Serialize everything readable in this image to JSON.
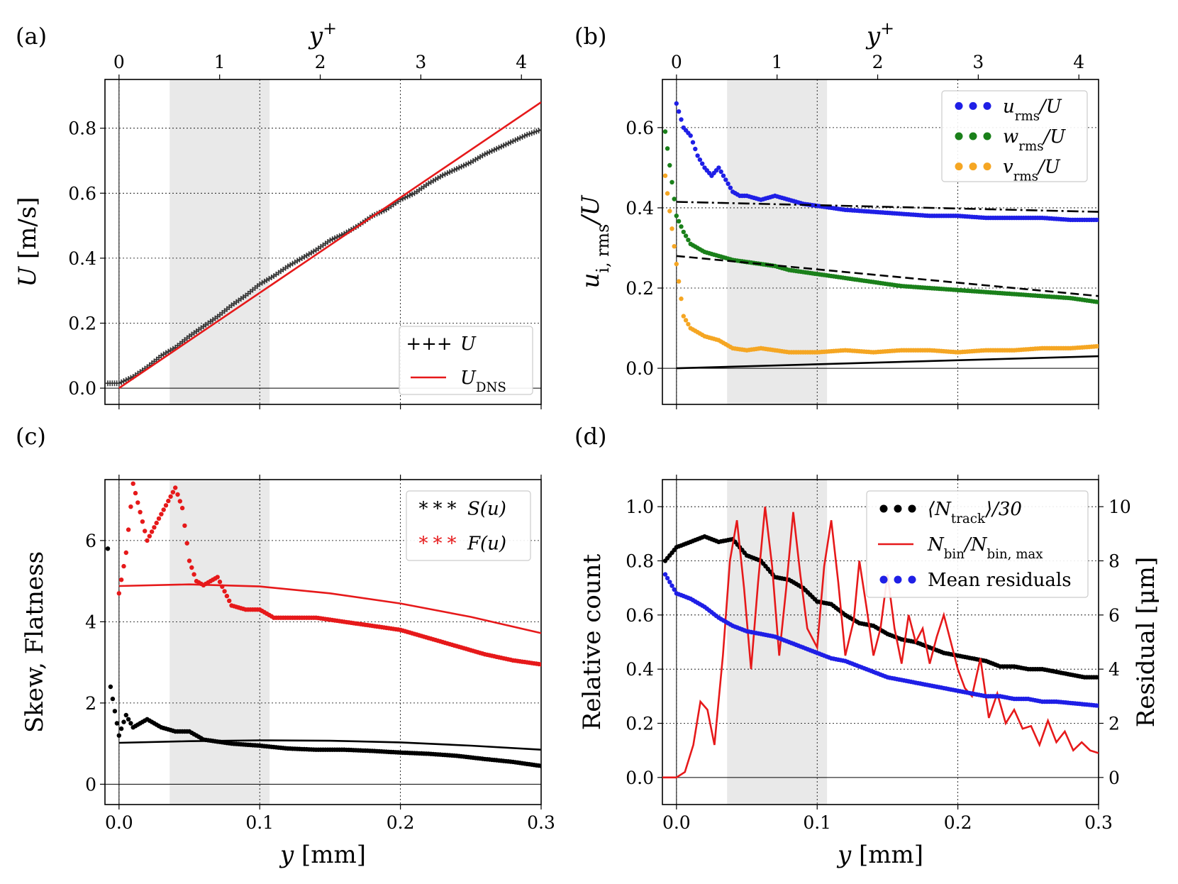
{
  "figure": {
    "panels": [
      {
        "id": "a",
        "label": "(a)",
        "xlabel": "",
        "top_label_main": "y",
        "top_label_sup": "+",
        "ylabel_main": "U",
        "ylabel_rest": " [m/s]",
        "xlim": [
          -0.01,
          0.3
        ],
        "ylim": [
          -0.05,
          0.95
        ],
        "x_ticks": [],
        "y_ticks": [
          "0.0",
          "0.2",
          "0.4",
          "0.6",
          "0.8"
        ],
        "top_ticks": [
          "0",
          "1",
          "2",
          "3",
          "4"
        ],
        "legend": [
          {
            "marker": "+++",
            "main": "U",
            "sub": ""
          },
          {
            "marker": "line",
            "main": "U",
            "sub": "DNS"
          }
        ]
      },
      {
        "id": "b",
        "label": "(b)",
        "xlabel": "",
        "top_label_main": "y",
        "top_label_sup": "+",
        "ylabel_main": "u",
        "ylabel_sub": "i, rms",
        "ylabel_rest": "/U",
        "xlim": [
          -0.01,
          0.3
        ],
        "ylim": [
          -0.09,
          0.72
        ],
        "x_ticks": [],
        "y_ticks": [
          "0.0",
          "0.2",
          "0.4",
          "0.6"
        ],
        "top_ticks": [
          "0",
          "1",
          "2",
          "3",
          "4"
        ],
        "legend": [
          {
            "marker": "dots",
            "color": "#1f1fe6",
            "main": "u",
            "sub": "rms",
            "rest": "/U"
          },
          {
            "marker": "dots",
            "color": "#1a801a",
            "main": "w",
            "sub": "rms",
            "rest": "/U"
          },
          {
            "marker": "dots",
            "color": "#f5a623",
            "main": "v",
            "sub": "rms",
            "rest": "/U"
          }
        ]
      },
      {
        "id": "c",
        "label": "(c)",
        "xlabel_main": "y",
        "xlabel_rest": " [mm]",
        "ylabel_main": "Skew, Flatness",
        "xlim": [
          -0.01,
          0.3
        ],
        "ylim": [
          -0.5,
          7.5
        ],
        "x_ticks": [
          "0.0",
          "0.1",
          "0.2",
          "0.3"
        ],
        "y_ticks": [
          "0",
          "2",
          "4",
          "6"
        ],
        "legend": [
          {
            "marker": "stars",
            "color": "#000000",
            "main": "S(u)"
          },
          {
            "marker": "stars",
            "color": "#e6191a",
            "main": "F(u)"
          }
        ]
      },
      {
        "id": "d",
        "label": "(d)",
        "xlabel_main": "y",
        "xlabel_rest": " [mm]",
        "ylabel_main": "Relative count",
        "ylabel_right": "Residual [μm]",
        "xlim": [
          -0.01,
          0.3
        ],
        "ylim": [
          -0.1,
          1.1
        ],
        "y2lim": [
          -1,
          11
        ],
        "x_ticks": [
          "0.0",
          "0.1",
          "0.2",
          "0.3"
        ],
        "y_ticks": [
          "0.0",
          "0.2",
          "0.4",
          "0.6",
          "0.8",
          "1.0"
        ],
        "y2_ticks": [
          "0",
          "2",
          "4",
          "6",
          "8",
          "10"
        ],
        "legend": [
          {
            "marker": "dots",
            "color": "#000000",
            "main": "⟨N",
            "sub": "track",
            "rest": "⟩/30"
          },
          {
            "marker": "line",
            "color": "#e6191a",
            "main": "N",
            "sub": "bin",
            "rest": "/N",
            "sub2": "bin, max"
          },
          {
            "marker": "dots",
            "color": "#1f1fe6",
            "main": "Mean residuals"
          }
        ]
      }
    ]
  },
  "chart_data": [
    {
      "panel": "a",
      "type": "line",
      "xlabel": "",
      "ylabel": "U [m/s]",
      "top_xlabel": "y+",
      "xlim": [
        -0.01,
        0.3
      ],
      "ylim": [
        -0.05,
        0.95
      ],
      "grid": true,
      "legend_position": "lower-right",
      "shaded_band": [
        0.036,
        0.107
      ],
      "series": [
        {
          "name": "U",
          "style": "markers-plus",
          "color": "#333333",
          "x": [
            -0.008,
            0.0,
            0.01,
            0.02,
            0.03,
            0.04,
            0.05,
            0.06,
            0.07,
            0.08,
            0.09,
            0.1,
            0.11,
            0.12,
            0.13,
            0.14,
            0.15,
            0.16,
            0.17,
            0.18,
            0.19,
            0.2,
            0.21,
            0.22,
            0.23,
            0.24,
            0.25,
            0.26,
            0.27,
            0.28,
            0.29,
            0.3
          ],
          "y": [
            0.015,
            0.015,
            0.035,
            0.065,
            0.1,
            0.125,
            0.16,
            0.19,
            0.22,
            0.255,
            0.285,
            0.32,
            0.345,
            0.375,
            0.4,
            0.425,
            0.455,
            0.475,
            0.5,
            0.53,
            0.55,
            0.58,
            0.6,
            0.63,
            0.655,
            0.675,
            0.695,
            0.72,
            0.74,
            0.76,
            0.78,
            0.795
          ]
        },
        {
          "name": "U_DNS",
          "style": "line",
          "color": "#e6191a",
          "x": [
            0.0,
            0.3
          ],
          "y": [
            0.0,
            0.88
          ]
        }
      ]
    },
    {
      "panel": "b",
      "type": "scatter",
      "xlabel": "",
      "ylabel": "u_i,rms/U",
      "top_xlabel": "y+",
      "xlim": [
        -0.01,
        0.3
      ],
      "ylim": [
        -0.09,
        0.72
      ],
      "grid": true,
      "legend_position": "upper-right",
      "shaded_band": [
        0.036,
        0.107
      ],
      "series": [
        {
          "name": "u_rms/U",
          "color": "#1f1fe6",
          "x": [
            0.0,
            0.005,
            0.01,
            0.015,
            0.02,
            0.025,
            0.03,
            0.035,
            0.04,
            0.045,
            0.05,
            0.06,
            0.07,
            0.08,
            0.09,
            0.1,
            0.12,
            0.14,
            0.16,
            0.18,
            0.2,
            0.22,
            0.24,
            0.26,
            0.28,
            0.3
          ],
          "y": [
            0.66,
            0.6,
            0.58,
            0.53,
            0.5,
            0.48,
            0.5,
            0.47,
            0.44,
            0.43,
            0.43,
            0.42,
            0.43,
            0.42,
            0.41,
            0.405,
            0.395,
            0.39,
            0.385,
            0.38,
            0.38,
            0.375,
            0.375,
            0.375,
            0.37,
            0.37
          ]
        },
        {
          "name": "w_rms/U",
          "color": "#1a801a",
          "x": [
            -0.008,
            0.0,
            0.005,
            0.01,
            0.02,
            0.03,
            0.04,
            0.05,
            0.06,
            0.07,
            0.08,
            0.1,
            0.12,
            0.14,
            0.16,
            0.18,
            0.2,
            0.22,
            0.24,
            0.26,
            0.28,
            0.3
          ],
          "y": [
            0.59,
            0.38,
            0.34,
            0.31,
            0.29,
            0.28,
            0.27,
            0.265,
            0.26,
            0.255,
            0.245,
            0.235,
            0.225,
            0.215,
            0.205,
            0.2,
            0.195,
            0.19,
            0.185,
            0.18,
            0.175,
            0.165
          ]
        },
        {
          "name": "v_rms/U",
          "color": "#f5a623",
          "x": [
            -0.008,
            0.0,
            0.005,
            0.01,
            0.02,
            0.03,
            0.04,
            0.05,
            0.06,
            0.08,
            0.1,
            0.12,
            0.14,
            0.16,
            0.18,
            0.2,
            0.22,
            0.24,
            0.26,
            0.28,
            0.3
          ],
          "y": [
            0.48,
            0.26,
            0.13,
            0.1,
            0.08,
            0.07,
            0.05,
            0.045,
            0.05,
            0.04,
            0.04,
            0.045,
            0.04,
            0.045,
            0.045,
            0.04,
            0.045,
            0.045,
            0.05,
            0.05,
            0.055
          ]
        },
        {
          "name": "",
          "style": "line-dashdot",
          "color": "#000000",
          "x": [
            0.0,
            0.3
          ],
          "y": [
            0.415,
            0.39
          ]
        },
        {
          "name": "",
          "style": "line-dashed",
          "color": "#000000",
          "x": [
            0.0,
            0.3
          ],
          "y": [
            0.28,
            0.18
          ]
        },
        {
          "name": "",
          "style": "line",
          "color": "#000000",
          "x": [
            0.0,
            0.3
          ],
          "y": [
            0.0,
            0.03
          ]
        }
      ]
    },
    {
      "panel": "c",
      "type": "scatter",
      "xlabel": "y [mm]",
      "ylabel": "Skew, Flatness",
      "xlim": [
        -0.01,
        0.3
      ],
      "ylim": [
        -0.5,
        7.5
      ],
      "grid": true,
      "legend_position": "upper-right",
      "shaded_band": [
        0.036,
        0.107
      ],
      "series": [
        {
          "name": "S(u)",
          "color": "#000000",
          "x": [
            -0.008,
            -0.006,
            0.0,
            0.005,
            0.01,
            0.02,
            0.03,
            0.04,
            0.05,
            0.06,
            0.08,
            0.1,
            0.12,
            0.14,
            0.16,
            0.18,
            0.2,
            0.22,
            0.24,
            0.26,
            0.28,
            0.3
          ],
          "y": [
            5.8,
            2.4,
            1.2,
            1.7,
            1.4,
            1.6,
            1.4,
            1.3,
            1.3,
            1.1,
            1.0,
            0.95,
            0.88,
            0.85,
            0.85,
            0.82,
            0.78,
            0.75,
            0.7,
            0.62,
            0.55,
            0.45
          ]
        },
        {
          "name": "F(u)",
          "color": "#e6191a",
          "x": [
            0.0,
            0.005,
            0.01,
            0.02,
            0.04,
            0.045,
            0.05,
            0.055,
            0.06,
            0.07,
            0.08,
            0.09,
            0.1,
            0.11,
            0.12,
            0.14,
            0.16,
            0.18,
            0.2,
            0.22,
            0.24,
            0.26,
            0.28,
            0.3
          ],
          "y": [
            4.7,
            5.7,
            7.4,
            6.0,
            7.3,
            6.8,
            5.5,
            5.0,
            4.9,
            5.1,
            4.4,
            4.3,
            4.3,
            4.1,
            4.1,
            4.1,
            4.0,
            3.9,
            3.8,
            3.6,
            3.4,
            3.2,
            3.05,
            2.95
          ]
        },
        {
          "name": "",
          "style": "line",
          "color": "#e6191a",
          "x": [
            0.0,
            0.05,
            0.1,
            0.15,
            0.2,
            0.25,
            0.3
          ],
          "y": [
            4.88,
            4.92,
            4.87,
            4.7,
            4.45,
            4.12,
            3.72
          ]
        },
        {
          "name": "",
          "style": "line",
          "color": "#000000",
          "x": [
            0.0,
            0.05,
            0.1,
            0.15,
            0.2,
            0.25,
            0.3
          ],
          "y": [
            1.02,
            1.06,
            1.08,
            1.07,
            1.03,
            0.95,
            0.85
          ]
        }
      ]
    },
    {
      "panel": "d",
      "type": "line",
      "xlabel": "y [mm]",
      "ylabel": "Relative count",
      "y2label": "Residual [μm]",
      "xlim": [
        -0.01,
        0.3
      ],
      "ylim": [
        -0.1,
        1.1
      ],
      "y2lim": [
        -1,
        11
      ],
      "grid": true,
      "legend_position": "upper-right",
      "shaded_band": [
        0.036,
        0.107
      ],
      "series": [
        {
          "name": "⟨N_track⟩/30",
          "style": "dots",
          "color": "#000000",
          "axis": "left",
          "x": [
            -0.008,
            0.0,
            0.01,
            0.02,
            0.03,
            0.04,
            0.05,
            0.06,
            0.07,
            0.08,
            0.09,
            0.1,
            0.11,
            0.12,
            0.13,
            0.14,
            0.15,
            0.16,
            0.17,
            0.18,
            0.19,
            0.2,
            0.21,
            0.22,
            0.23,
            0.24,
            0.25,
            0.26,
            0.27,
            0.28,
            0.29,
            0.3
          ],
          "y": [
            0.8,
            0.85,
            0.87,
            0.89,
            0.87,
            0.88,
            0.82,
            0.8,
            0.74,
            0.73,
            0.7,
            0.65,
            0.64,
            0.6,
            0.57,
            0.56,
            0.53,
            0.51,
            0.5,
            0.48,
            0.46,
            0.45,
            0.44,
            0.43,
            0.41,
            0.41,
            0.4,
            0.4,
            0.39,
            0.38,
            0.37,
            0.37
          ]
        },
        {
          "name": "N_bin/N_bin,max",
          "style": "line",
          "color": "#e6191a",
          "axis": "left",
          "x": [
            -0.01,
            0.0,
            0.006,
            0.012,
            0.017,
            0.022,
            0.027,
            0.033,
            0.038,
            0.043,
            0.048,
            0.053,
            0.058,
            0.063,
            0.068,
            0.073,
            0.078,
            0.083,
            0.088,
            0.093,
            0.1,
            0.105,
            0.11,
            0.115,
            0.12,
            0.126,
            0.13,
            0.135,
            0.14,
            0.145,
            0.15,
            0.155,
            0.16,
            0.165,
            0.17,
            0.175,
            0.18,
            0.185,
            0.19,
            0.2,
            0.205,
            0.21,
            0.216,
            0.222,
            0.228,
            0.234,
            0.24,
            0.246,
            0.252,
            0.258,
            0.264,
            0.27,
            0.276,
            0.282,
            0.288,
            0.294,
            0.3
          ],
          "y": [
            0.0,
            0.0,
            0.02,
            0.12,
            0.28,
            0.25,
            0.12,
            0.45,
            0.8,
            0.95,
            0.7,
            0.4,
            0.72,
            1.0,
            0.78,
            0.45,
            0.7,
            0.98,
            0.75,
            0.55,
            0.48,
            0.78,
            0.95,
            0.72,
            0.45,
            0.58,
            0.8,
            0.63,
            0.45,
            0.55,
            0.75,
            0.55,
            0.42,
            0.6,
            0.5,
            0.55,
            0.42,
            0.52,
            0.6,
            0.4,
            0.33,
            0.3,
            0.44,
            0.22,
            0.31,
            0.2,
            0.25,
            0.18,
            0.19,
            0.12,
            0.21,
            0.13,
            0.17,
            0.1,
            0.13,
            0.1,
            0.09
          ]
        },
        {
          "name": "Mean residuals",
          "style": "dots",
          "color": "#1f1fe6",
          "axis": "right",
          "x": [
            -0.008,
            0.0,
            0.01,
            0.02,
            0.03,
            0.04,
            0.05,
            0.06,
            0.07,
            0.08,
            0.09,
            0.1,
            0.11,
            0.12,
            0.13,
            0.14,
            0.15,
            0.16,
            0.17,
            0.18,
            0.19,
            0.2,
            0.21,
            0.22,
            0.23,
            0.24,
            0.25,
            0.26,
            0.27,
            0.28,
            0.29,
            0.3
          ],
          "y": [
            7.5,
            6.8,
            6.6,
            6.3,
            5.9,
            5.6,
            5.4,
            5.3,
            5.2,
            5.0,
            4.8,
            4.6,
            4.4,
            4.3,
            4.1,
            3.9,
            3.7,
            3.6,
            3.5,
            3.4,
            3.3,
            3.2,
            3.1,
            3.0,
            3.0,
            2.9,
            2.9,
            2.8,
            2.8,
            2.75,
            2.7,
            2.65
          ]
        }
      ]
    }
  ]
}
